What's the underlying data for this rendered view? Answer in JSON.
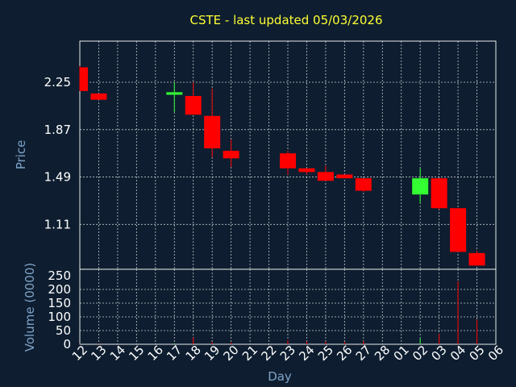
{
  "chart_data": {
    "type": "candlestick",
    "title": "CSTE - last updated 05/03/2026",
    "xlabel": "Day",
    "price_panel": {
      "ylabel": "Price",
      "yticks": [
        "2.25",
        "1.87",
        "1.49",
        "1.11"
      ],
      "ylim": [
        0.75,
        2.58
      ]
    },
    "volume_panel": {
      "ylabel": "Volume (0000)",
      "yticks": [
        "250",
        "200",
        "150",
        "100",
        "50",
        "0"
      ],
      "ylim": [
        0,
        250
      ]
    },
    "x_tick_labels": [
      "12",
      "13",
      "14",
      "15",
      "16",
      "17",
      "18",
      "19",
      "20",
      "21",
      "22",
      "23",
      "24",
      "25",
      "26",
      "27",
      "28",
      "01",
      "02",
      "03",
      "04",
      "05",
      "06"
    ],
    "candles": [
      {
        "day": "12",
        "open": 2.37,
        "high": 2.38,
        "low": 2.18,
        "close": 2.18,
        "volume": 2
      },
      {
        "day": "13",
        "open": 2.16,
        "high": 2.16,
        "low": 2.11,
        "close": 2.11,
        "volume": 2
      },
      {
        "day": "17",
        "open": 2.15,
        "high": 2.25,
        "low": 2.01,
        "close": 2.17,
        "volume": 3
      },
      {
        "day": "18",
        "open": 2.14,
        "high": 2.25,
        "low": 1.99,
        "close": 1.99,
        "volume": 25
      },
      {
        "day": "19",
        "open": 1.98,
        "high": 2.2,
        "low": 1.65,
        "close": 1.72,
        "volume": 8
      },
      {
        "day": "20",
        "open": 1.7,
        "high": 1.79,
        "low": 1.57,
        "close": 1.64,
        "volume": 6
      },
      {
        "day": "23",
        "open": 1.68,
        "high": 1.7,
        "low": 1.51,
        "close": 1.56,
        "volume": 15
      },
      {
        "day": "24",
        "open": 1.56,
        "high": 1.56,
        "low": 1.51,
        "close": 1.53,
        "volume": 10
      },
      {
        "day": "25",
        "open": 1.53,
        "high": 1.58,
        "low": 1.46,
        "close": 1.46,
        "volume": 10
      },
      {
        "day": "26",
        "open": 1.51,
        "high": 1.51,
        "low": 1.48,
        "close": 1.48,
        "volume": 8
      },
      {
        "day": "27",
        "open": 1.48,
        "high": 1.48,
        "low": 1.37,
        "close": 1.38,
        "volume": 12
      },
      {
        "day": "02",
        "open": 1.35,
        "high": 1.56,
        "low": 1.28,
        "close": 1.48,
        "volume": 22
      },
      {
        "day": "03",
        "open": 1.48,
        "high": 1.48,
        "low": 1.23,
        "close": 1.24,
        "volume": 38
      },
      {
        "day": "04",
        "open": 1.24,
        "high": 1.24,
        "low": 0.89,
        "close": 0.89,
        "volume": 230
      },
      {
        "day": "05",
        "open": 0.88,
        "high": 0.9,
        "low": 0.78,
        "close": 0.78,
        "volume": 90
      }
    ],
    "colors": {
      "up": "#33ff33",
      "down": "#ff0000",
      "background": "#0e1e30",
      "title": "#ffff33",
      "axis_label": "#7fa3c8",
      "tick_label": "#ffffff",
      "grid": "#ffffff"
    },
    "grid": true
  }
}
